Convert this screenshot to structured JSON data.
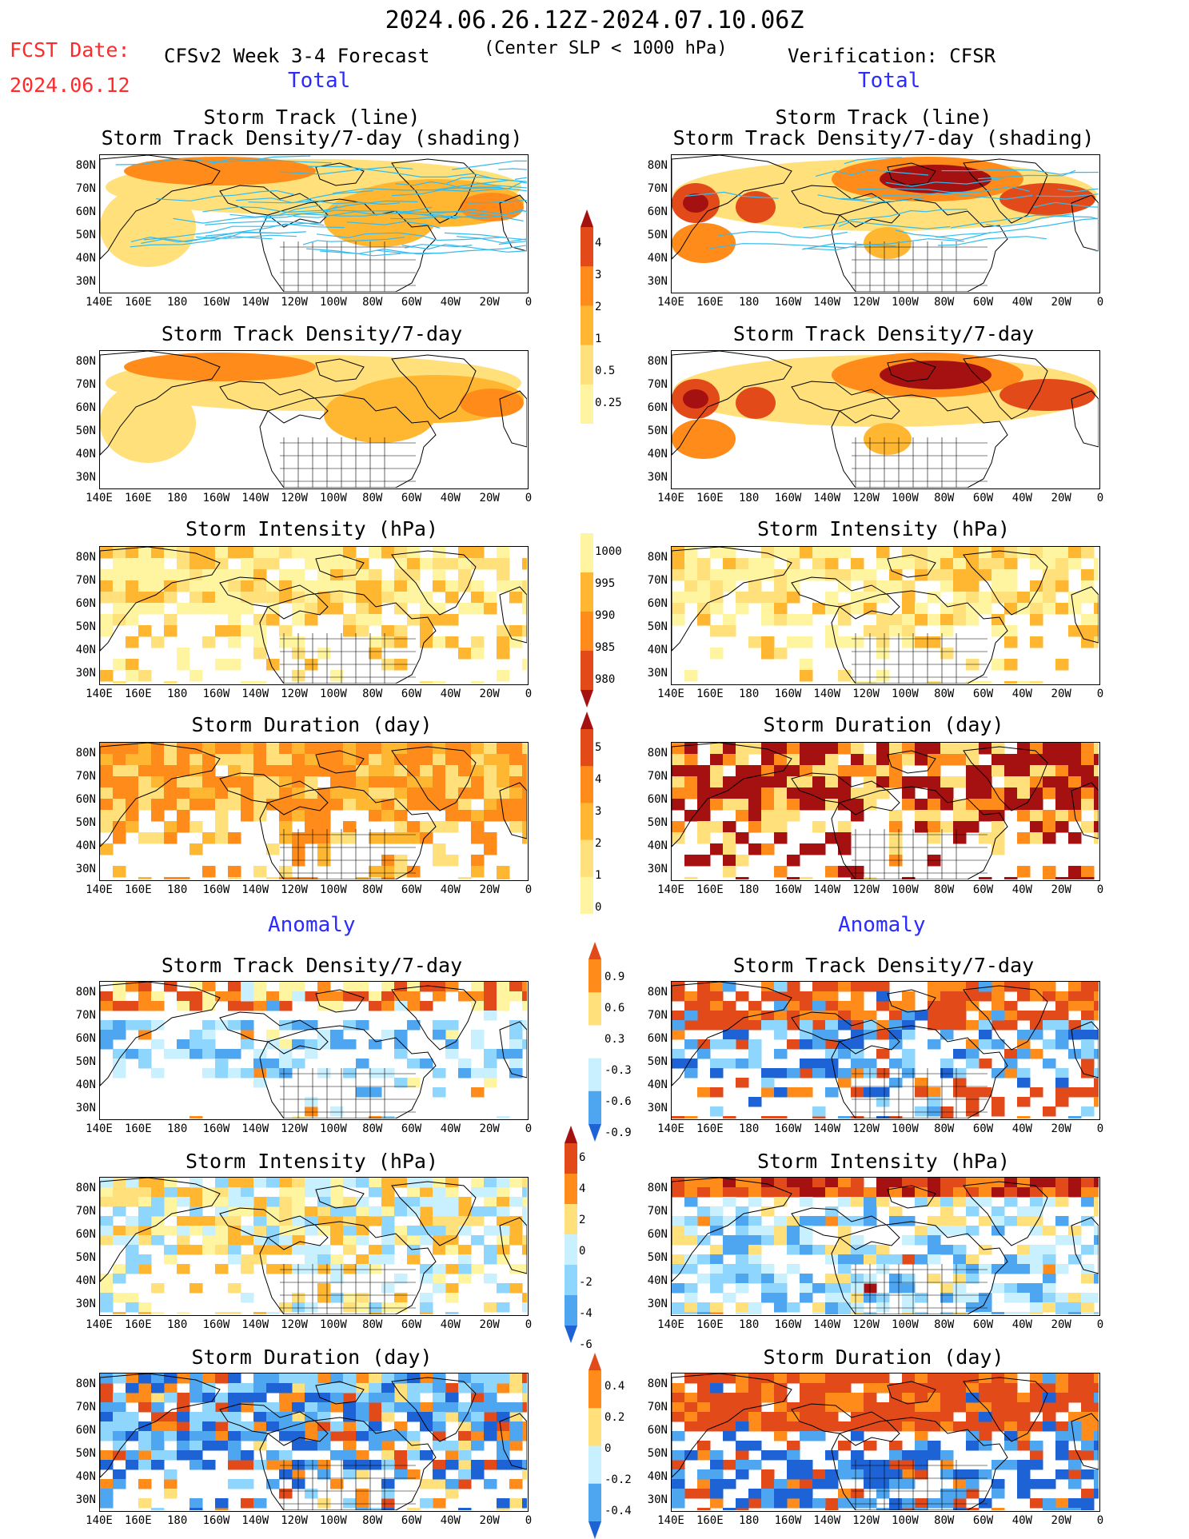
{
  "header": {
    "title": "2024.06.26.12Z-2024.07.10.06Z",
    "fcst_label": "FCST Date:",
    "fcst_date": "2024.06.12",
    "forecast_label": "CFSv2 Week 3-4 Forecast",
    "center_label": "(Center SLP < 1000 hPa)",
    "verification_label": "Verification: CFSR"
  },
  "sections": {
    "total": "Total",
    "anomaly": "Anomaly"
  },
  "panel_titles": {
    "track_line": "Storm Track (line)",
    "track_shading": "Storm Track Density/7-day (shading)",
    "density": "Storm Track Density/7-day",
    "intensity": "Storm Intensity (hPa)",
    "duration": "Storm Duration (day)"
  },
  "axes": {
    "lat_labels": [
      "80N",
      "70N",
      "60N",
      "50N",
      "40N",
      "30N"
    ],
    "lon_labels": [
      "140E",
      "160E",
      "180",
      "160W",
      "140W",
      "120W",
      "100W",
      "80W",
      "60W",
      "40W",
      "20W",
      "0"
    ]
  },
  "colorbars": {
    "density_total": [
      "4",
      "3",
      "2",
      "1",
      "0.5",
      "0.25"
    ],
    "intensity_total": [
      "1000",
      "995",
      "990",
      "985",
      "980"
    ],
    "duration_total": [
      "5",
      "4",
      "3",
      "2",
      "1",
      "0"
    ],
    "density_anom": [
      "0.9",
      "0.6",
      "0.3",
      "-0.3",
      "-0.6",
      "-0.9"
    ],
    "intensity_anom": [
      "6",
      "4",
      "2",
      "0",
      "-2",
      "-4",
      "-6"
    ],
    "duration_anom": [
      "0.4",
      "0.2",
      "0",
      "-0.2",
      "-0.4"
    ]
  },
  "colors": {
    "track_line": "#33bbee",
    "warm": [
      "#fff5a0",
      "#ffe07a",
      "#ffb732",
      "#ff8c1a",
      "#e34a1a",
      "#a51010"
    ],
    "cool": [
      "#c8f0ff",
      "#8fd6ff",
      "#4ea5f0",
      "#1e63d6"
    ],
    "fcst_text": "#ff2a2a",
    "section_text": "#2b2bff"
  }
}
